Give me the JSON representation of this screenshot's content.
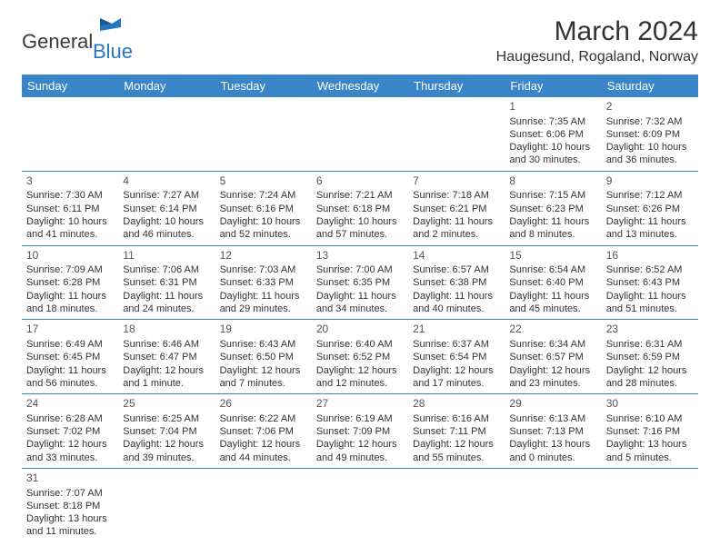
{
  "logo": {
    "general": "General",
    "blue": "Blue"
  },
  "title": "March 2024",
  "location": "Haugesund, Rogaland, Norway",
  "colors": {
    "header_bg": "#3a85c8",
    "header_text": "#ffffff",
    "border": "#3a85c8",
    "text": "#333333",
    "logo_blue": "#2676c0"
  },
  "dayHeaders": [
    "Sunday",
    "Monday",
    "Tuesday",
    "Wednesday",
    "Thursday",
    "Friday",
    "Saturday"
  ],
  "weeks": [
    [
      null,
      null,
      null,
      null,
      null,
      {
        "n": "1",
        "sr": "Sunrise: 7:35 AM",
        "ss": "Sunset: 6:06 PM",
        "dl": "Daylight: 10 hours and 30 minutes."
      },
      {
        "n": "2",
        "sr": "Sunrise: 7:32 AM",
        "ss": "Sunset: 6:09 PM",
        "dl": "Daylight: 10 hours and 36 minutes."
      }
    ],
    [
      {
        "n": "3",
        "sr": "Sunrise: 7:30 AM",
        "ss": "Sunset: 6:11 PM",
        "dl": "Daylight: 10 hours and 41 minutes."
      },
      {
        "n": "4",
        "sr": "Sunrise: 7:27 AM",
        "ss": "Sunset: 6:14 PM",
        "dl": "Daylight: 10 hours and 46 minutes."
      },
      {
        "n": "5",
        "sr": "Sunrise: 7:24 AM",
        "ss": "Sunset: 6:16 PM",
        "dl": "Daylight: 10 hours and 52 minutes."
      },
      {
        "n": "6",
        "sr": "Sunrise: 7:21 AM",
        "ss": "Sunset: 6:18 PM",
        "dl": "Daylight: 10 hours and 57 minutes."
      },
      {
        "n": "7",
        "sr": "Sunrise: 7:18 AM",
        "ss": "Sunset: 6:21 PM",
        "dl": "Daylight: 11 hours and 2 minutes."
      },
      {
        "n": "8",
        "sr": "Sunrise: 7:15 AM",
        "ss": "Sunset: 6:23 PM",
        "dl": "Daylight: 11 hours and 8 minutes."
      },
      {
        "n": "9",
        "sr": "Sunrise: 7:12 AM",
        "ss": "Sunset: 6:26 PM",
        "dl": "Daylight: 11 hours and 13 minutes."
      }
    ],
    [
      {
        "n": "10",
        "sr": "Sunrise: 7:09 AM",
        "ss": "Sunset: 6:28 PM",
        "dl": "Daylight: 11 hours and 18 minutes."
      },
      {
        "n": "11",
        "sr": "Sunrise: 7:06 AM",
        "ss": "Sunset: 6:31 PM",
        "dl": "Daylight: 11 hours and 24 minutes."
      },
      {
        "n": "12",
        "sr": "Sunrise: 7:03 AM",
        "ss": "Sunset: 6:33 PM",
        "dl": "Daylight: 11 hours and 29 minutes."
      },
      {
        "n": "13",
        "sr": "Sunrise: 7:00 AM",
        "ss": "Sunset: 6:35 PM",
        "dl": "Daylight: 11 hours and 34 minutes."
      },
      {
        "n": "14",
        "sr": "Sunrise: 6:57 AM",
        "ss": "Sunset: 6:38 PM",
        "dl": "Daylight: 11 hours and 40 minutes."
      },
      {
        "n": "15",
        "sr": "Sunrise: 6:54 AM",
        "ss": "Sunset: 6:40 PM",
        "dl": "Daylight: 11 hours and 45 minutes."
      },
      {
        "n": "16",
        "sr": "Sunrise: 6:52 AM",
        "ss": "Sunset: 6:43 PM",
        "dl": "Daylight: 11 hours and 51 minutes."
      }
    ],
    [
      {
        "n": "17",
        "sr": "Sunrise: 6:49 AM",
        "ss": "Sunset: 6:45 PM",
        "dl": "Daylight: 11 hours and 56 minutes."
      },
      {
        "n": "18",
        "sr": "Sunrise: 6:46 AM",
        "ss": "Sunset: 6:47 PM",
        "dl": "Daylight: 12 hours and 1 minute."
      },
      {
        "n": "19",
        "sr": "Sunrise: 6:43 AM",
        "ss": "Sunset: 6:50 PM",
        "dl": "Daylight: 12 hours and 7 minutes."
      },
      {
        "n": "20",
        "sr": "Sunrise: 6:40 AM",
        "ss": "Sunset: 6:52 PM",
        "dl": "Daylight: 12 hours and 12 minutes."
      },
      {
        "n": "21",
        "sr": "Sunrise: 6:37 AM",
        "ss": "Sunset: 6:54 PM",
        "dl": "Daylight: 12 hours and 17 minutes."
      },
      {
        "n": "22",
        "sr": "Sunrise: 6:34 AM",
        "ss": "Sunset: 6:57 PM",
        "dl": "Daylight: 12 hours and 23 minutes."
      },
      {
        "n": "23",
        "sr": "Sunrise: 6:31 AM",
        "ss": "Sunset: 6:59 PM",
        "dl": "Daylight: 12 hours and 28 minutes."
      }
    ],
    [
      {
        "n": "24",
        "sr": "Sunrise: 6:28 AM",
        "ss": "Sunset: 7:02 PM",
        "dl": "Daylight: 12 hours and 33 minutes."
      },
      {
        "n": "25",
        "sr": "Sunrise: 6:25 AM",
        "ss": "Sunset: 7:04 PM",
        "dl": "Daylight: 12 hours and 39 minutes."
      },
      {
        "n": "26",
        "sr": "Sunrise: 6:22 AM",
        "ss": "Sunset: 7:06 PM",
        "dl": "Daylight: 12 hours and 44 minutes."
      },
      {
        "n": "27",
        "sr": "Sunrise: 6:19 AM",
        "ss": "Sunset: 7:09 PM",
        "dl": "Daylight: 12 hours and 49 minutes."
      },
      {
        "n": "28",
        "sr": "Sunrise: 6:16 AM",
        "ss": "Sunset: 7:11 PM",
        "dl": "Daylight: 12 hours and 55 minutes."
      },
      {
        "n": "29",
        "sr": "Sunrise: 6:13 AM",
        "ss": "Sunset: 7:13 PM",
        "dl": "Daylight: 13 hours and 0 minutes."
      },
      {
        "n": "30",
        "sr": "Sunrise: 6:10 AM",
        "ss": "Sunset: 7:16 PM",
        "dl": "Daylight: 13 hours and 5 minutes."
      }
    ],
    [
      {
        "n": "31",
        "sr": "Sunrise: 7:07 AM",
        "ss": "Sunset: 8:18 PM",
        "dl": "Daylight: 13 hours and 11 minutes."
      },
      null,
      null,
      null,
      null,
      null,
      null
    ]
  ]
}
